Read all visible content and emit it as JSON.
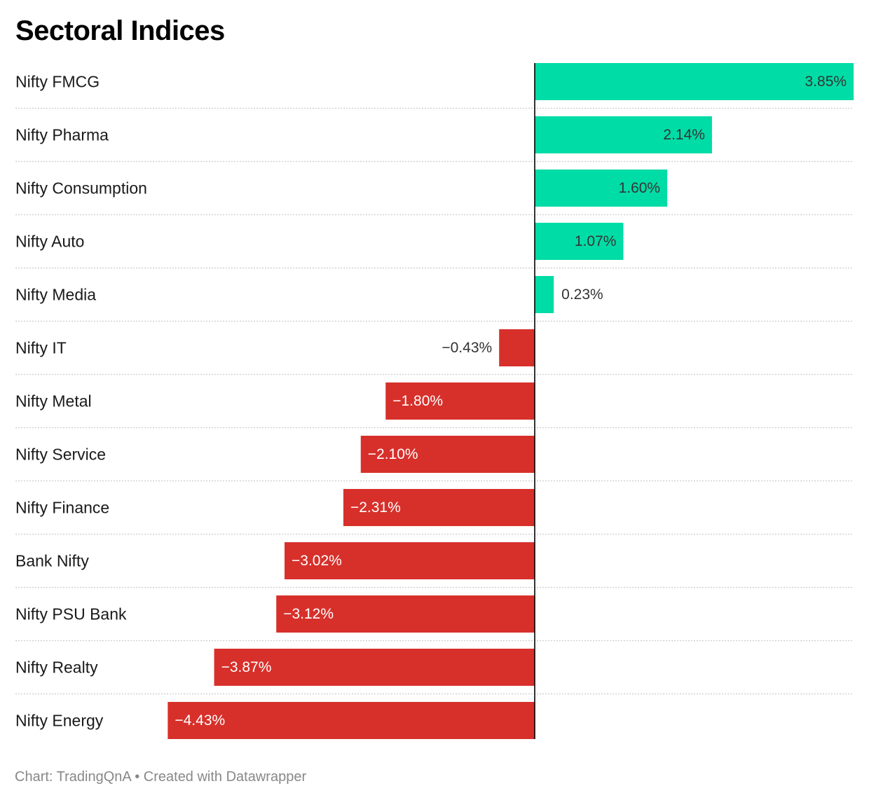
{
  "chart_data": {
    "type": "bar",
    "orientation": "horizontal",
    "title": "Sectoral Indices",
    "categories": [
      "Nifty FMCG",
      "Nifty Pharma",
      "Nifty Consumption",
      "Nifty Auto",
      "Nifty Media",
      "Nifty IT",
      "Nifty Metal",
      "Nifty Service",
      "Nifty Finance",
      "Bank Nifty",
      "Nifty PSU Bank",
      "Nifty Realty",
      "Nifty Energy"
    ],
    "values": [
      3.85,
      2.14,
      1.6,
      1.07,
      0.23,
      -0.43,
      -1.8,
      -2.1,
      -2.31,
      -3.02,
      -3.12,
      -3.87,
      -4.43
    ],
    "value_labels": [
      "3.85%",
      "2.14%",
      "1.60%",
      "1.07%",
      "0.23%",
      "−0.43%",
      "−1.80%",
      "−2.10%",
      "−2.31%",
      "−3.02%",
      "−3.12%",
      "−3.87%",
      "−4.43%"
    ],
    "unit": "%",
    "colors": {
      "positive": "#00dca6",
      "negative": "#d7302b",
      "axis": "#000000",
      "gridline": "#cccccc"
    },
    "grid": false
  },
  "footer": {
    "source": "Chart: TradingQnA",
    "separator": " • ",
    "credit": "Created with Datawrapper"
  }
}
